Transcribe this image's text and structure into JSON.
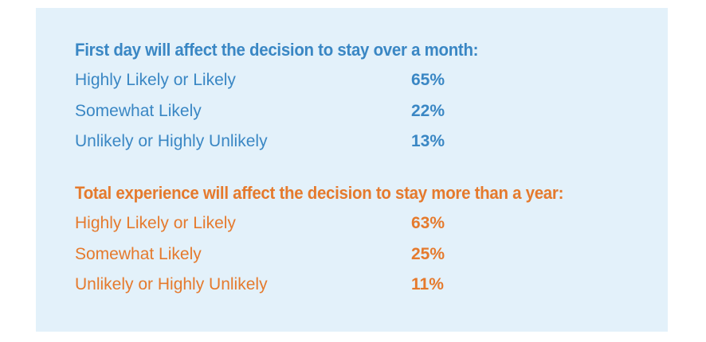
{
  "sections": [
    {
      "heading": "First day will affect the decision to stay over a month:",
      "color": "#3a87c4",
      "rows": [
        {
          "label": "Highly Likely or Likely",
          "value": "65%"
        },
        {
          "label": "Somewhat Likely",
          "value": "22%"
        },
        {
          "label": "Unlikely or Highly Unlikely",
          "value": "13%"
        }
      ]
    },
    {
      "heading": "Total experience will affect the decision to stay more than a year:",
      "color": "#e57a2d",
      "rows": [
        {
          "label": "Highly Likely or Likely",
          "value": "63%"
        },
        {
          "label": "Somewhat Likely",
          "value": "25%"
        },
        {
          "label": "Unlikely or Highly Unlikely",
          "value": "11%"
        }
      ]
    }
  ],
  "card_background": "#e3f1fa"
}
